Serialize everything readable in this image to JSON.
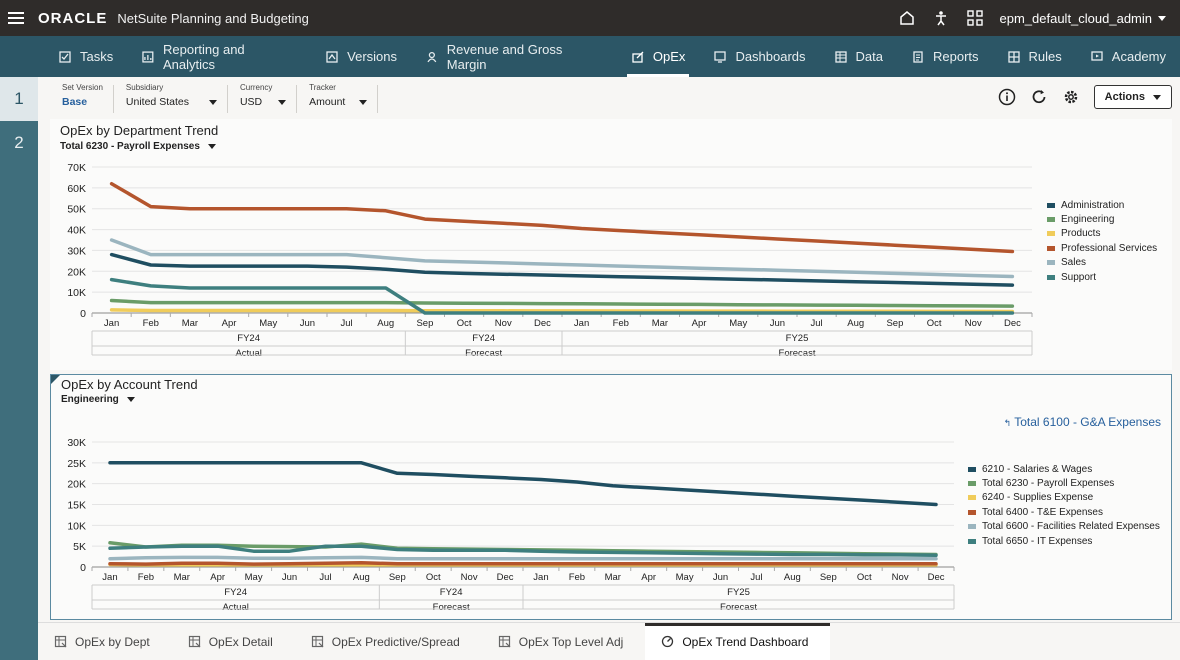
{
  "header": {
    "brand": "ORACLE",
    "app_name": "NetSuite Planning and Budgeting",
    "user": "epm_default_cloud_admin"
  },
  "nav": {
    "items": [
      {
        "label": "Tasks",
        "icon": "tasks-icon"
      },
      {
        "label": "Reporting and Analytics",
        "icon": "reporting-icon"
      },
      {
        "label": "Versions",
        "icon": "versions-icon"
      },
      {
        "label": "Revenue and Gross Margin",
        "icon": "revenue-icon"
      },
      {
        "label": "OpEx",
        "icon": "opex-icon",
        "active": true
      },
      {
        "label": "Dashboards",
        "icon": "dashboards-icon"
      },
      {
        "label": "Data",
        "icon": "data-icon"
      },
      {
        "label": "Reports",
        "icon": "reports-icon"
      },
      {
        "label": "Rules",
        "icon": "rules-icon"
      },
      {
        "label": "Academy",
        "icon": "academy-icon"
      }
    ]
  },
  "rail": {
    "items": [
      "1",
      "2"
    ]
  },
  "filters": {
    "set_version": {
      "label": "Set Version",
      "value": "Base"
    },
    "subsidiary": {
      "label": "Subsidiary",
      "value": "United States"
    },
    "currency": {
      "label": "Currency",
      "value": "USD"
    },
    "tracker": {
      "label": "Tracker",
      "value": "Amount"
    }
  },
  "actions_label": "Actions",
  "panel1": {
    "title": "OpEx by Department Trend",
    "selector": "Total 6230 - Payroll Expenses"
  },
  "panel2": {
    "title": "OpEx by Account Trend",
    "selector": "Engineering",
    "drill_link": "Total 6100 - G&A Expenses"
  },
  "chart_data": [
    {
      "type": "line",
      "months": [
        "Jan",
        "Feb",
        "Mar",
        "Apr",
        "May",
        "Jun",
        "Jul",
        "Aug",
        "Sep",
        "Oct",
        "Nov",
        "Dec",
        "Jan",
        "Feb",
        "Mar",
        "Apr",
        "May",
        "Jun",
        "Jul",
        "Aug",
        "Sep",
        "Oct",
        "Nov",
        "Dec"
      ],
      "groups": [
        {
          "year": "FY24",
          "scenario": "Actual",
          "count": 8
        },
        {
          "year": "FY24",
          "scenario": "Forecast",
          "count": 4
        },
        {
          "year": "FY25",
          "scenario": "Forecast",
          "count": 12
        }
      ],
      "ylim": [
        0,
        70000
      ],
      "yticks": [
        "0",
        "10K",
        "20K",
        "30K",
        "40K",
        "50K",
        "60K",
        "70K"
      ],
      "legend_position": "right",
      "series": [
        {
          "name": "Administration",
          "color": "#1f4e61",
          "values": [
            28000,
            23000,
            22500,
            22500,
            22500,
            22500,
            22000,
            21000,
            19500,
            19000,
            18600,
            18200,
            17800,
            17400,
            17000,
            16600,
            16200,
            15800,
            15400,
            15000,
            14600,
            14200,
            13800,
            13400
          ]
        },
        {
          "name": "Engineering",
          "color": "#6a9c68",
          "values": [
            6000,
            5000,
            5000,
            5000,
            5000,
            5000,
            5000,
            5000,
            4800,
            4700,
            4600,
            4500,
            4400,
            4300,
            4200,
            4100,
            4000,
            3900,
            3800,
            3700,
            3600,
            3500,
            3400,
            3300
          ]
        },
        {
          "name": "Products",
          "color": "#f0cc5a",
          "values": [
            1500,
            1200,
            1200,
            1200,
            1200,
            1200,
            1200,
            1200,
            1100,
            1100,
            1050,
            1000,
            1000,
            950,
            950,
            900,
            900,
            850,
            850,
            800,
            800,
            750,
            750,
            700
          ]
        },
        {
          "name": "Professional Services",
          "color": "#b4552d",
          "values": [
            62000,
            51000,
            50000,
            50000,
            50000,
            50000,
            50000,
            49000,
            45000,
            44000,
            43000,
            42000,
            40500,
            39500,
            38500,
            37500,
            36500,
            35500,
            34500,
            33500,
            32500,
            31500,
            30500,
            29500
          ]
        },
        {
          "name": "Sales",
          "color": "#9bb5bf",
          "values": [
            35000,
            28000,
            28000,
            28000,
            28000,
            28000,
            28000,
            26500,
            25000,
            24500,
            24000,
            23500,
            23000,
            22500,
            22000,
            21500,
            21000,
            20500,
            20000,
            19500,
            19000,
            18500,
            18000,
            17500
          ]
        },
        {
          "name": "Support",
          "color": "#3e7f7f",
          "values": [
            16000,
            13000,
            12000,
            12000,
            12000,
            12000,
            12000,
            12000,
            0,
            0,
            0,
            0,
            0,
            0,
            0,
            0,
            0,
            0,
            0,
            0,
            0,
            0,
            0,
            0
          ]
        }
      ]
    },
    {
      "type": "line",
      "months": [
        "Jan",
        "Feb",
        "Mar",
        "Apr",
        "May",
        "Jun",
        "Jul",
        "Aug",
        "Sep",
        "Oct",
        "Nov",
        "Dec",
        "Jan",
        "Feb",
        "Mar",
        "Apr",
        "May",
        "Jun",
        "Jul",
        "Aug",
        "Sep",
        "Oct",
        "Nov",
        "Dec"
      ],
      "groups": [
        {
          "year": "FY24",
          "scenario": "Actual",
          "count": 8
        },
        {
          "year": "FY24",
          "scenario": "Forecast",
          "count": 4
        },
        {
          "year": "FY25",
          "scenario": "Forecast",
          "count": 12
        }
      ],
      "ylim": [
        0,
        30000
      ],
      "yticks": [
        "0",
        "5K",
        "10K",
        "15K",
        "20K",
        "25K",
        "30K"
      ],
      "legend_position": "right",
      "series": [
        {
          "name": "6210 - Salaries & Wages",
          "color": "#1f4e61",
          "values": [
            25000,
            25000,
            25000,
            25000,
            25000,
            25000,
            25000,
            25000,
            22500,
            22200,
            21800,
            21400,
            21000,
            20400,
            19500,
            19000,
            18500,
            18000,
            17500,
            17000,
            16500,
            16000,
            15500,
            15000
          ]
        },
        {
          "name": "Total 6230 - Payroll Expenses",
          "color": "#6a9c68",
          "values": [
            5800,
            4800,
            5200,
            5200,
            5000,
            4900,
            4800,
            5500,
            4500,
            4400,
            4300,
            4200,
            4100,
            4000,
            3900,
            3800,
            3700,
            3600,
            3500,
            3400,
            3300,
            3200,
            3100,
            3000
          ]
        },
        {
          "name": "6240 - Supplies Expense",
          "color": "#f0cc5a",
          "values": [
            600,
            500,
            500,
            500,
            500,
            500,
            500,
            500,
            500,
            500,
            500,
            500,
            500,
            500,
            500,
            500,
            500,
            500,
            500,
            500,
            500,
            500,
            500,
            500
          ]
        },
        {
          "name": "Total 6400 - T&E Expenses",
          "color": "#b4552d",
          "values": [
            800,
            700,
            900,
            900,
            700,
            800,
            900,
            1000,
            800,
            800,
            800,
            800,
            800,
            800,
            800,
            800,
            800,
            800,
            800,
            800,
            800,
            800,
            800,
            800
          ]
        },
        {
          "name": "Total 6600 - Facilities Related Expenses",
          "color": "#9bb5bf",
          "values": [
            2000,
            2200,
            2300,
            2300,
            2100,
            2100,
            2200,
            2300,
            2000,
            2000,
            2000,
            2000,
            2000,
            2000,
            2000,
            2000,
            2000,
            2000,
            2000,
            2000,
            2000,
            2000,
            2000,
            2000
          ]
        },
        {
          "name": "Total 6650 - IT Expenses",
          "color": "#3e7f7f",
          "values": [
            4500,
            4800,
            5000,
            5000,
            3800,
            3800,
            5000,
            5000,
            4200,
            4000,
            4000,
            4000,
            3800,
            3600,
            3500,
            3400,
            3300,
            3200,
            3100,
            3000,
            3000,
            2900,
            2900,
            2800
          ]
        }
      ]
    }
  ],
  "bottom_tabs": [
    {
      "label": "OpEx by Dept"
    },
    {
      "label": "OpEx Detail"
    },
    {
      "label": "OpEx Predictive/Spread"
    },
    {
      "label": "OpEx Top Level Adj"
    },
    {
      "label": "OpEx Trend Dashboard",
      "active": true
    }
  ]
}
